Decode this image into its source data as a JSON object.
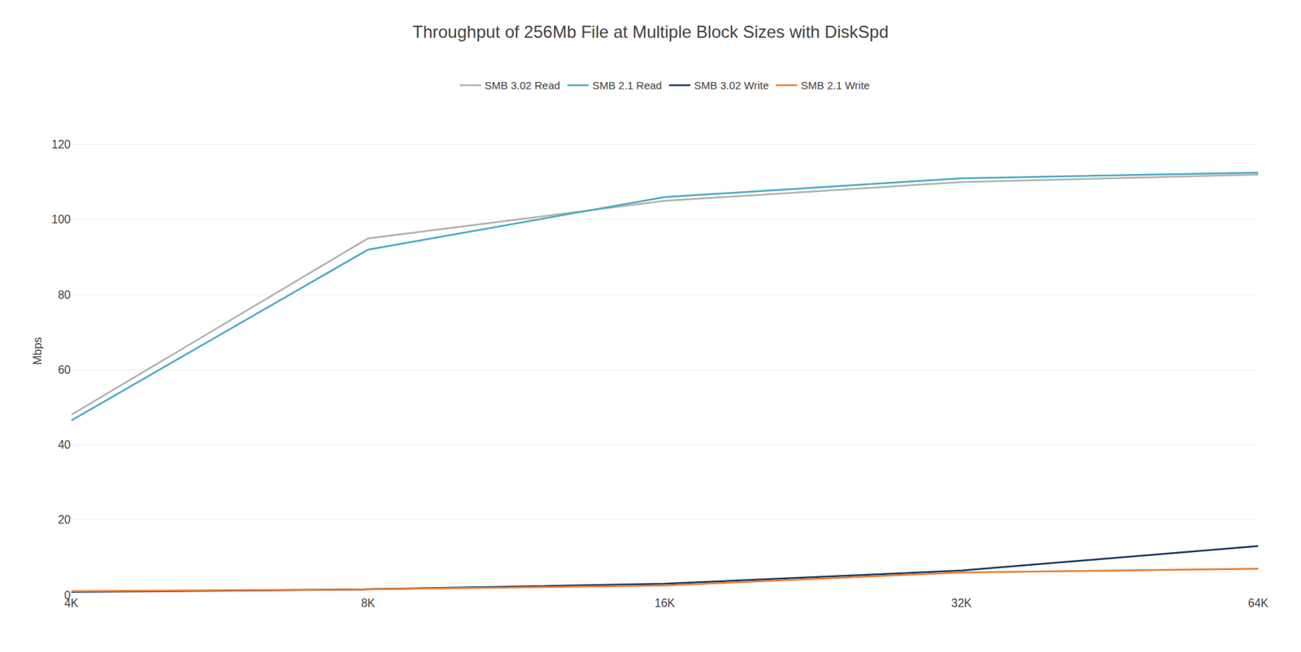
{
  "chart_data": {
    "type": "line",
    "title": "Throughput of 256Mb File at Multiple Block Sizes with DiskSpd",
    "ylabel": "Mbps",
    "categories": [
      "4K",
      "8K",
      "16K",
      "32K",
      "64K"
    ],
    "series": [
      {
        "name": "SMB 3.02 Read",
        "color": "#b2b2b2",
        "values": [
          48.0,
          95.0,
          105.0,
          110.0,
          112.0
        ]
      },
      {
        "name": "SMB 2.1 Read",
        "color": "#4bacc6",
        "values": [
          46.5,
          92.0,
          106.0,
          111.0,
          112.5
        ]
      },
      {
        "name": "SMB 3.02 Write",
        "color": "#1f3864",
        "values": [
          0.8,
          1.5,
          3.0,
          6.5,
          13.0
        ]
      },
      {
        "name": "SMB 2.1 Write",
        "color": "#ed7d31",
        "values": [
          1.0,
          1.5,
          2.5,
          6.0,
          7.0
        ]
      }
    ],
    "ylim": [
      0,
      130
    ],
    "yticks": [
      0,
      20,
      40,
      60,
      80,
      100,
      120
    ],
    "grid": true,
    "legend": "top"
  }
}
